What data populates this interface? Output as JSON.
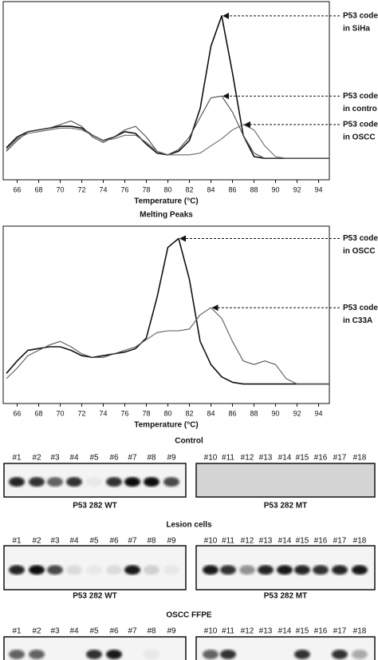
{
  "charts": [
    {
      "chart_data": {
        "type": "line",
        "xlabel": "Temperature (°C)",
        "x": [
          65,
          66,
          67,
          68,
          69,
          70,
          71,
          72,
          73,
          74,
          75,
          76,
          77,
          78,
          79,
          80,
          81,
          82,
          83,
          84,
          85,
          86,
          87,
          88,
          89,
          90,
          91,
          92,
          93,
          94,
          95
        ],
        "xlim": [
          64.7,
          95
        ],
        "xticks": [
          66,
          68,
          70,
          72,
          74,
          76,
          78,
          80,
          82,
          84,
          86,
          88,
          90,
          92,
          94
        ],
        "ylim": [
          0,
          100
        ],
        "series": [
          {
            "color": "#111111",
            "values": [
              18,
              24,
              27,
              28,
              29,
              30,
              30,
              29,
              25,
              22,
              24,
              27,
              26,
              20,
              15,
              14,
              16,
              22,
              40,
              75,
              92,
              60,
              25,
              13,
              12,
              12,
              12,
              12,
              12,
              12,
              12
            ]
          },
          {
            "color": "#4a4a4a",
            "values": [
              16,
              22,
              27,
              28,
              29,
              31,
              33,
              30,
              24,
              21,
              24,
              28,
              30,
              24,
              16,
              14,
              17,
              24,
              35,
              46,
              47,
              38,
              25,
              15,
              12,
              12,
              12,
              12,
              12,
              12,
              12
            ]
          },
          {
            "color": "#6a6a6a",
            "values": [
              17,
              23,
              26,
              27,
              28,
              29,
              29,
              28,
              25,
              22,
              23,
              25,
              25,
              21,
              16,
              14,
              14,
              14,
              15,
              19,
              23,
              28,
              31,
              28,
              19,
              13,
              12,
              12,
              12,
              12,
              12
            ]
          }
        ],
        "annotations": [
          [
            "P53 code",
            "in SiHa"
          ],
          [
            "P53 code",
            "in contro"
          ],
          [
            "P53 code",
            "in OSCC"
          ]
        ]
      }
    },
    {
      "chart_data": {
        "type": "line",
        "title": "Melting Peaks",
        "xlabel": "Temperature (°C)",
        "x": [
          65,
          66,
          67,
          68,
          69,
          70,
          71,
          72,
          73,
          74,
          75,
          76,
          77,
          78,
          79,
          80,
          81,
          82,
          83,
          84,
          85,
          86,
          87,
          88,
          89,
          90,
          91,
          92,
          93,
          94,
          95
        ],
        "xlim": [
          64.7,
          95
        ],
        "xticks": [
          66,
          68,
          70,
          72,
          74,
          76,
          78,
          80,
          82,
          84,
          86,
          88,
          90,
          92,
          94
        ],
        "ylim": [
          0,
          100
        ],
        "series": [
          {
            "color": "#111111",
            "values": [
              17,
              24,
              30,
              31,
              32,
              32,
              30,
              27,
              26,
              27,
              28,
              29,
              31,
              37,
              60,
              88,
              93,
              70,
              35,
              22,
              15,
              12,
              11,
              11,
              11,
              11,
              11,
              11,
              11,
              11,
              11
            ]
          },
          {
            "color": "#5a5a5a",
            "values": [
              14,
              20,
              27,
              30,
              33,
              35,
              32,
              28,
              26,
              26,
              28,
              30,
              32,
              36,
              40,
              41,
              41,
              42,
              50,
              54,
              48,
              35,
              24,
              22,
              24,
              22,
              14,
              11,
              11,
              11,
              11
            ]
          }
        ],
        "annotations": [
          [
            "P53 code",
            "in OSCC"
          ],
          [
            "P53 code",
            "in C33A"
          ]
        ]
      }
    }
  ],
  "gels": [
    {
      "title": "Control",
      "panels": [
        {
          "lanes": [
            "#1",
            "#2",
            "#3",
            "#4",
            "#5",
            "#6",
            "#7",
            "#8",
            "#9"
          ],
          "caption": "P53 282 WT",
          "bands": [
            0.85,
            0.8,
            0.6,
            0.8,
            0.05,
            0.8,
            0.95,
            0.95,
            0.7
          ]
        },
        {
          "lanes": [
            "#10",
            "#11",
            "#12",
            "#13",
            "#14",
            "#15",
            "#16",
            "#17",
            "#18"
          ],
          "caption": "P53 282 MT",
          "bands": [
            0,
            0,
            0,
            0,
            0,
            0,
            0,
            0,
            0
          ]
        }
      ]
    },
    {
      "title": "Lesion cells",
      "panels": [
        {
          "lanes": [
            "#1",
            "#2",
            "#3",
            "#4",
            "#5",
            "#6",
            "#7",
            "#8",
            "#9"
          ],
          "caption": "P53 282 WT",
          "bands": [
            0.85,
            0.95,
            0.7,
            0.1,
            0.05,
            0.1,
            0.9,
            0.15,
            0.05
          ]
        },
        {
          "lanes": [
            "#10",
            "#11",
            "#12",
            "#13",
            "#14",
            "#15",
            "#16",
            "#17",
            "#18"
          ],
          "caption": "P53 282 MT",
          "bands": [
            0.9,
            0.8,
            0.4,
            0.85,
            0.9,
            0.85,
            0.8,
            0.85,
            0.9
          ]
        }
      ]
    },
    {
      "title": "OSCC FFPE",
      "panels": [
        {
          "lanes": [
            "#1",
            "#2",
            "#3",
            "#4",
            "#5",
            "#6",
            "#7",
            "#8",
            "#9"
          ],
          "bands": [
            0.6,
            0.6,
            0,
            0,
            0.8,
            0.9,
            0,
            0.05,
            0
          ]
        },
        {
          "lanes": [
            "#10",
            "#11",
            "#12",
            "#13",
            "#14",
            "#15",
            "#16",
            "#17",
            "#18"
          ],
          "bands": [
            0.6,
            0.8,
            0,
            0,
            0,
            0.8,
            0,
            0.8,
            0.3
          ]
        }
      ]
    }
  ]
}
